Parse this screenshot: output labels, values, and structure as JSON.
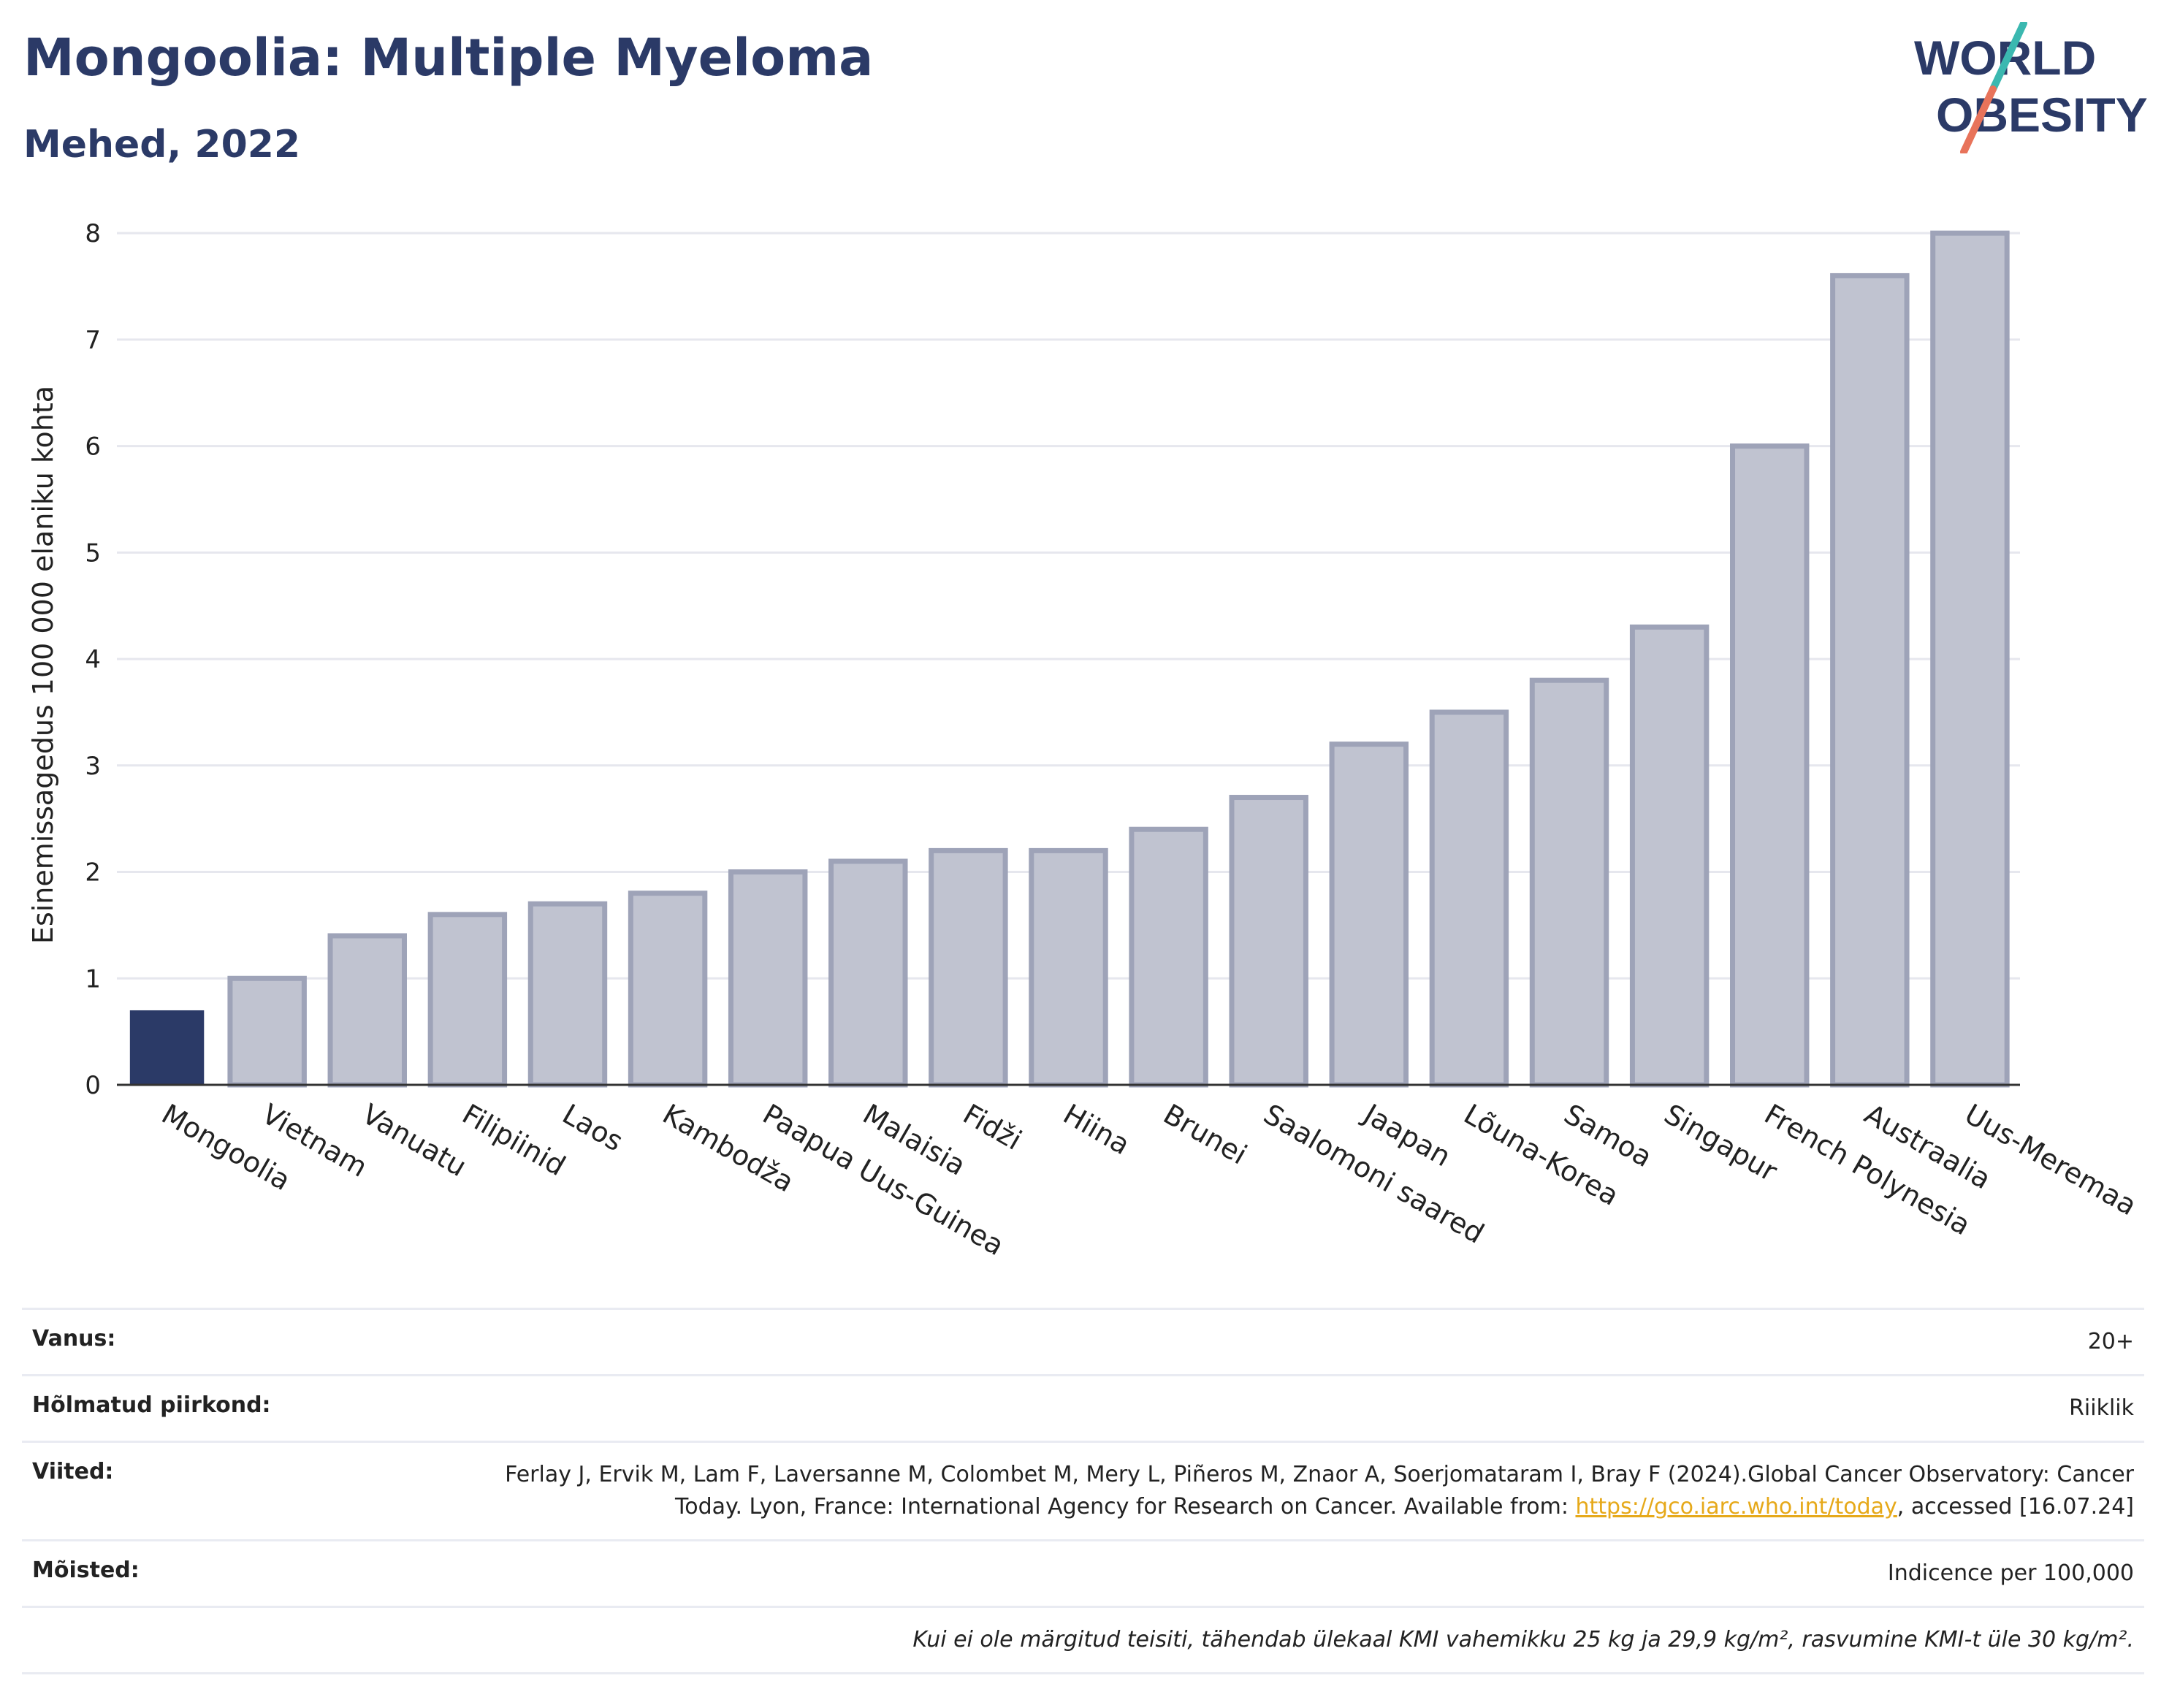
{
  "header": {
    "title": "Mongoolia: Multiple Myeloma",
    "subtitle": "Mehed, 2022"
  },
  "logo": {
    "line1": "WORLD",
    "line2": "OBESITY",
    "colors": {
      "text": "#2b3a67",
      "slash_top": "#3bb8b0",
      "slash_bottom": "#e8735a"
    }
  },
  "chart_data": {
    "type": "bar",
    "ylabel": "Esinemissagedus 100 000 elaniku kohta",
    "xlabel": "",
    "ylim": [
      0,
      8.2
    ],
    "yticks": [
      0,
      1,
      2,
      3,
      4,
      5,
      6,
      7,
      8
    ],
    "grid": true,
    "categories": [
      "Mongoolia",
      "Vietnam",
      "Vanuatu",
      "Filipiinid",
      "Laos",
      "Kambodža",
      "Paapua Uus-Guinea",
      "Malaisia",
      "Fidži",
      "Hiina",
      "Brunei",
      "Saalomoni saared",
      "Jaapan",
      "Lõuna-Korea",
      "Samoa",
      "Singapur",
      "French Polynesia",
      "Austraalia",
      "Uus-Meremaa"
    ],
    "values": [
      0.7,
      1.0,
      1.4,
      1.6,
      1.7,
      1.8,
      2.0,
      2.1,
      2.2,
      2.2,
      2.4,
      2.7,
      3.2,
      3.5,
      3.8,
      4.3,
      6.0,
      7.6,
      8.0
    ],
    "highlight": "Mongoolia",
    "colors": {
      "highlight": "#2b3a67",
      "other_fill": "#c0c3d0",
      "other_stroke": "#9ea3b8"
    }
  },
  "info": {
    "age_label": "Vanus:",
    "age_value": "20+",
    "coverage_label": "Hõlmatud piirkond:",
    "coverage_value": "Riiklik",
    "refs_label": "Viited:",
    "refs_text": "Ferlay J, Ervik M, Lam F, Laversanne M, Colombet M, Mery L, Piñeros M, Znaor A, Soerjomataram I, Bray F (2024).Global Cancer Observatory: Cancer Today. Lyon, France: International Agency for Research on Cancer. Available from: ",
    "refs_link": "https://gco.iarc.who.int/today",
    "refs_tail": ", accessed [16.07.24]",
    "defs_label": "Mõisted:",
    "defs_value": "Indicence per 100,000",
    "footnote": "Kui ei ole märgitud teisiti, tähendab ülekaal KMI vahemikku 25 kg ja 29,9 kg/m², rasvumine KMI-t üle 30 kg/m²."
  }
}
